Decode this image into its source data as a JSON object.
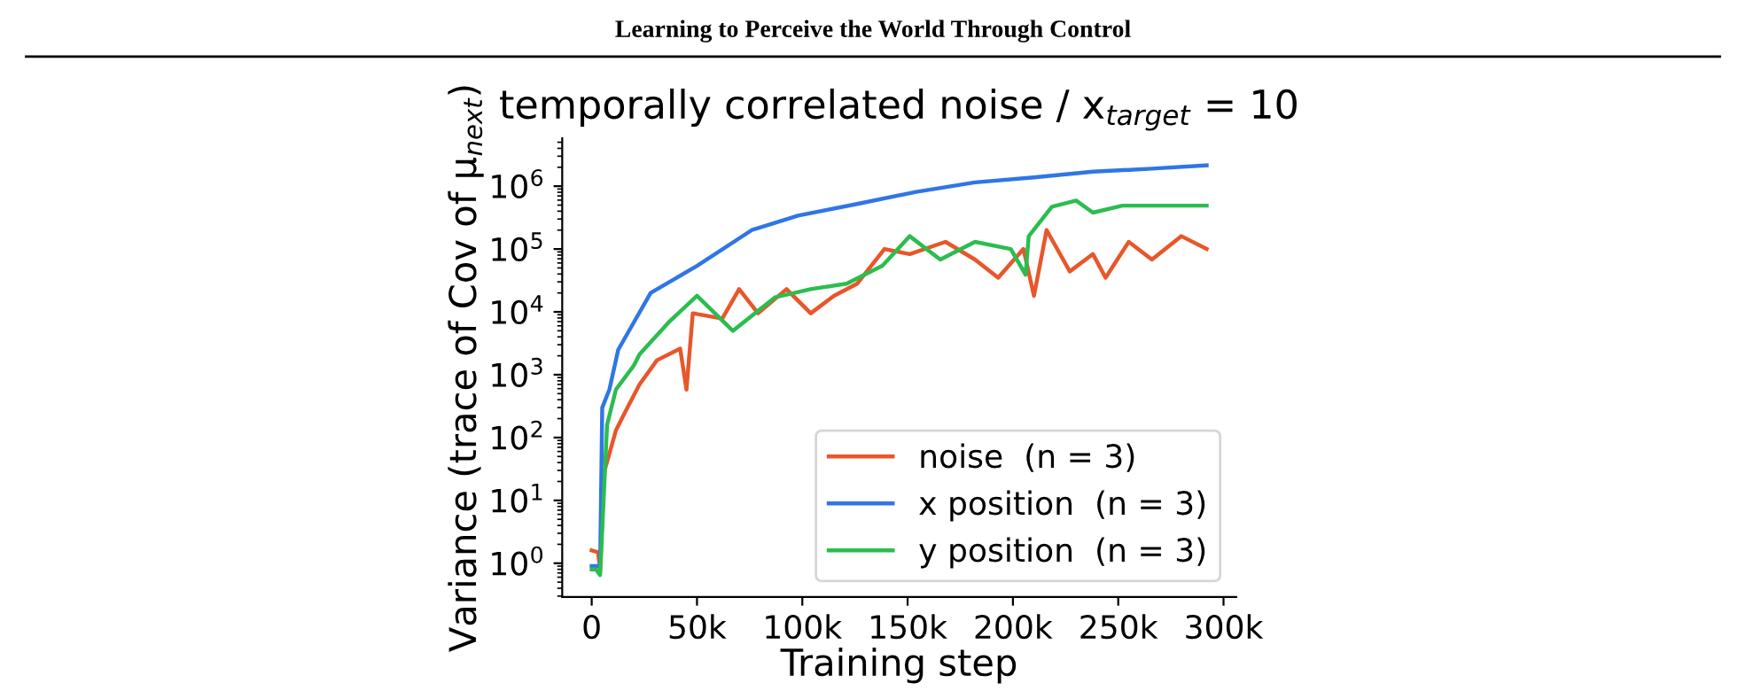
{
  "chart_data": {
    "type": "line",
    "title": "temporally correlated noise / x$_{target}$ = 10",
    "xlabel": "Training step",
    "ylabel": "Variance (trace of Cov of μ$_{next}$)",
    "annotations": [
      "Learning to Perceive the World Through Control"
    ],
    "log": "y",
    "grid": false,
    "legend": "bottom right",
    "xlim": [
      -14000,
      306000
    ],
    "ylim": [
      0.29,
      5800000
    ],
    "xticks": [
      0,
      {
        "value": 50000,
        "label": "50k"
      },
      {
        "value": 100000,
        "label": "100k"
      },
      {
        "value": 150000,
        "label": "150k"
      },
      {
        "value": 200000,
        "label": "200k"
      },
      {
        "value": 250000,
        "label": "250k"
      },
      {
        "value": 300000,
        "label": "300k"
      }
    ],
    "yticks": [
      {
        "value": 1,
        "label": "10$^{0}$"
      },
      {
        "value": 10,
        "label": "10$^{1}$"
      },
      {
        "value": 100,
        "label": "10$^{2}$"
      },
      {
        "value": 1000,
        "label": "10$^{3}$"
      },
      {
        "value": 10000,
        "label": "10$^{4}$"
      },
      {
        "value": 100000,
        "label": "10$^{5}$"
      },
      {
        "value": 1000000,
        "label": "10$^{6}$"
      }
    ],
    "series": [
      {
        "name": "noise  (n = 3)",
        "color": "#e8562a",
        "x": [
          0,
          3000,
          4000,
          5900,
          11500,
          17000,
          22700,
          31000,
          42000,
          45000,
          48000,
          62000,
          70000,
          79000,
          92500,
          104000,
          115000,
          126000,
          139000,
          151000,
          168000,
          182000,
          193000,
          205000,
          210000,
          216000,
          227000,
          238000,
          244000,
          255000,
          266000,
          280000,
          292000
        ],
        "values": [
          1.6,
          1.5,
          0.8,
          28,
          130,
          300,
          700,
          1700,
          2600,
          580,
          9500,
          7800,
          23000,
          9500,
          23000,
          9500,
          18000,
          28000,
          100000,
          83000,
          130000,
          68000,
          35000,
          100000,
          18000,
          200000,
          44000,
          83000,
          35000,
          130000,
          68000,
          160000,
          100000
        ]
      },
      {
        "name": "x position  (n = 3)",
        "color": "#2f76e6",
        "x": [
          0,
          2000,
          4000,
          5000,
          8400,
          12600,
          28000,
          50000,
          76000,
          98000,
          126000,
          154000,
          182000,
          210000,
          238000,
          266000,
          292000
        ],
        "values": [
          0.9,
          0.9,
          0.9,
          300,
          580,
          2500,
          20000,
          54000,
          200000,
          340000,
          520000,
          810000,
          1150000,
          1380000,
          1700000,
          1900000,
          2140000
        ]
      },
      {
        "name": "y position  (n = 3)",
        "color": "#2bbd4f",
        "x": [
          0,
          2000,
          4000,
          7300,
          11500,
          20000,
          22700,
          36700,
          50000,
          67000,
          87000,
          104000,
          121000,
          138000,
          151000,
          165500,
          182000,
          199000,
          206000,
          207500,
          218500,
          230000,
          238000,
          252000,
          292000
        ],
        "values": [
          0.8,
          0.8,
          0.65,
          160,
          580,
          1400,
          2100,
          6900,
          18000,
          5000,
          17000,
          23000,
          28000,
          54000,
          160000,
          68000,
          130000,
          100000,
          39000,
          160000,
          470000,
          590000,
          380000,
          490000,
          490000
        ]
      }
    ]
  }
}
